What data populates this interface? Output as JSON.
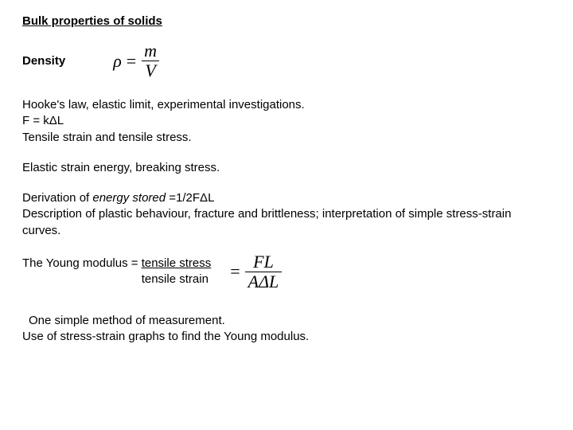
{
  "title": "Bulk properties of solids",
  "density": {
    "label": "Density",
    "lhs": "ρ",
    "eq": "=",
    "num": "m",
    "den": "V"
  },
  "hookes": {
    "line1": "Hooke's law, elastic limit, experimental investigations.",
    "line2": "F = kΔL",
    "line3": "Tensile strain and tensile stress."
  },
  "elastic": "Elastic strain energy, breaking stress.",
  "derivation": {
    "prefix": " Derivation of ",
    "italic": "energy stored",
    "suffix": " =1/2FΔL",
    "desc": "Description of plastic behaviour, fracture and brittleness; interpretation of simple stress-strain curves."
  },
  "young": {
    "text_prefix": "The Young modulus = ",
    "frac_num": "tensile stress",
    "frac_den": "tensile strain",
    "eq": "=",
    "num": "FL",
    "den": "AΔL"
  },
  "closing": {
    "line1": "  One simple method of measurement.",
    "line2": "Use of stress-strain graphs to find the Young modulus."
  },
  "style": {
    "background": "#ffffff",
    "text_color": "#000000",
    "body_fontsize": 15,
    "formula_fontsize": 22
  }
}
